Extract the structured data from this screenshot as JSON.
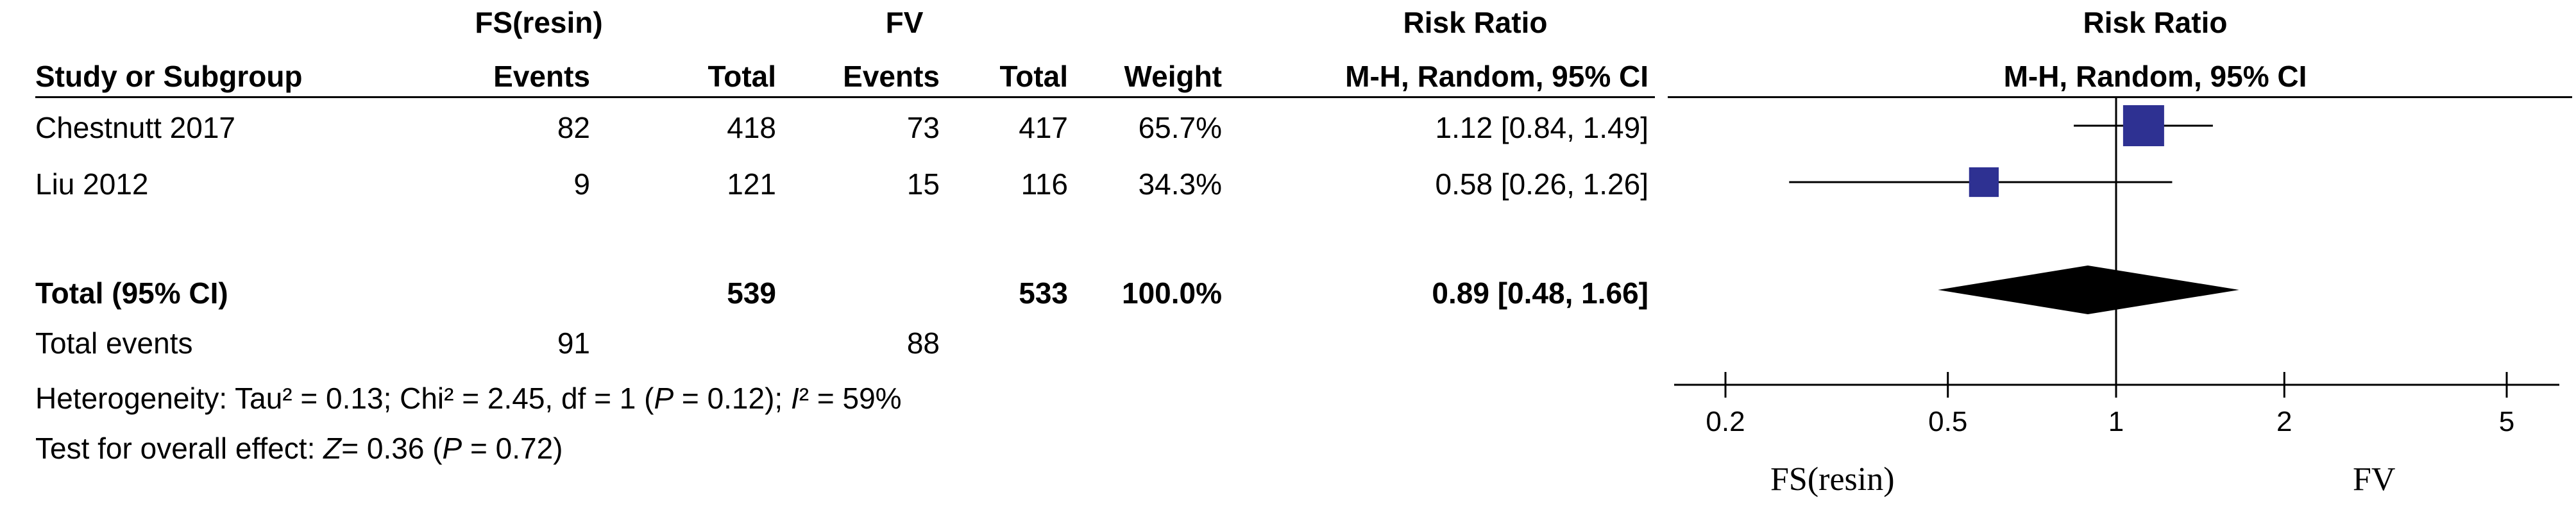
{
  "header": {
    "group1": "FS(resin)",
    "group2": "FV",
    "rr_col": "Risk Ratio",
    "rr_plot": "Risk Ratio",
    "study": "Study or Subgroup",
    "events1": "Events",
    "total1": "Total",
    "events2": "Events",
    "total2": "Total",
    "weight": "Weight",
    "method_col": "M-H, Random, 95% CI",
    "method_plot": "M-H, Random, 95% CI"
  },
  "studies": [
    {
      "name": "Chestnutt 2017",
      "events1": "82",
      "total1": "418",
      "events2": "73",
      "total2": "417",
      "weight": "65.7%",
      "ci": "1.12 [0.84, 1.49]"
    },
    {
      "name": "Liu 2012",
      "events1": "9",
      "total1": "121",
      "events2": "15",
      "total2": "116",
      "weight": "34.3%",
      "ci": "0.58 [0.26, 1.26]"
    }
  ],
  "total_row": {
    "label": "Total (95% CI)",
    "total1": "539",
    "total2": "533",
    "weight": "100.0%",
    "ci": "0.89 [0.48, 1.66]"
  },
  "events_row": {
    "label": "Total events",
    "events1": "91",
    "events2": "88"
  },
  "heterogeneity": {
    "prefix": "Heterogeneity: Tau² = 0.13; Chi² = 2.45, df = 1 (",
    "p": "P",
    "mid": " = 0.12); ",
    "i": "I",
    "suffix": "² = 59%"
  },
  "overall": {
    "prefix": "Test for overall effect: ",
    "z": "Z",
    "mid": "= 0.36 (",
    "p": "P",
    "suffix": " = 0.72)"
  },
  "footer": {
    "left": "FS(resin)",
    "right": "FV"
  },
  "chart_data": {
    "type": "forest",
    "scale": "log",
    "xlim": [
      0.2,
      5
    ],
    "ticks": [
      0.2,
      0.5,
      1,
      2,
      5
    ],
    "tick_labels": [
      "0.2",
      "0.5",
      "1",
      "2",
      "5"
    ],
    "null_value": 1,
    "studies": [
      {
        "rr": 1.12,
        "lo": 0.84,
        "hi": 1.49,
        "weight": 65.7
      },
      {
        "rr": 0.58,
        "lo": 0.26,
        "hi": 1.26,
        "weight": 34.3
      }
    ],
    "pooled": {
      "rr": 0.89,
      "lo": 0.48,
      "hi": 1.66
    },
    "colors": {
      "square": "#2e3192",
      "diamond": "#000000",
      "lines": "#000000"
    }
  }
}
